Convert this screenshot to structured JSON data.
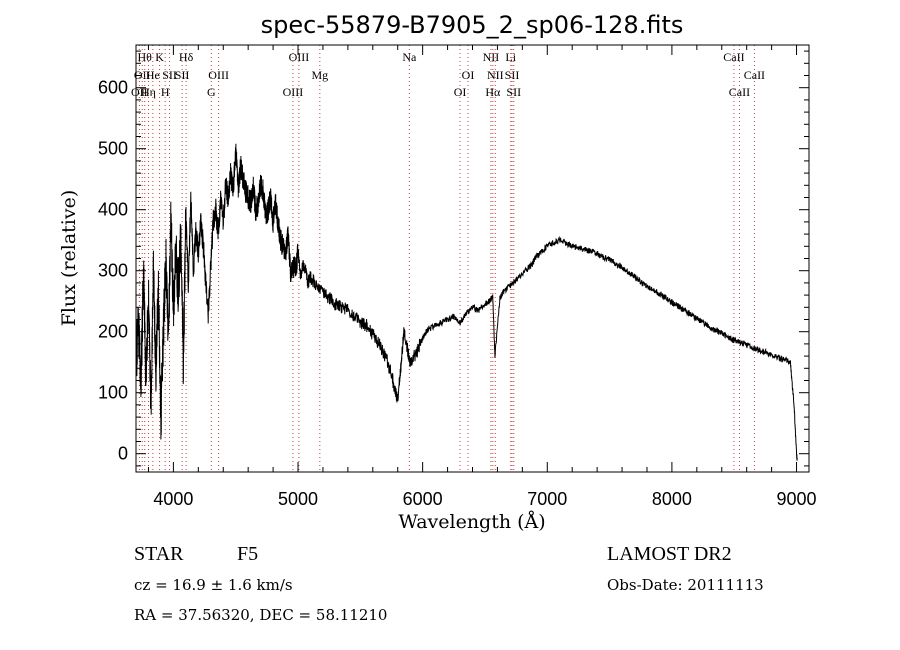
{
  "chart_data": {
    "type": "line",
    "title": "spec-55879-B7905_2_sp06-128.fits",
    "xlabel": "Wavelength (Å)",
    "ylabel": "Flux (relative)",
    "xlim": [
      3700,
      9100
    ],
    "ylim": [
      -30,
      670
    ],
    "x_ticks": [
      4000,
      5000,
      6000,
      7000,
      8000,
      9000
    ],
    "y_ticks": [
      0,
      100,
      200,
      300,
      400,
      500,
      600
    ],
    "grid": false,
    "series": [
      {
        "color": "#000000",
        "x": [
          3700,
          3720,
          3740,
          3760,
          3780,
          3800,
          3820,
          3840,
          3860,
          3880,
          3900,
          3920,
          3940,
          3960,
          3980,
          4000,
          4020,
          4040,
          4060,
          4080,
          4100,
          4120,
          4140,
          4160,
          4180,
          4200,
          4220,
          4240,
          4260,
          4280,
          4300,
          4320,
          4340,
          4360,
          4380,
          4400,
          4420,
          4440,
          4460,
          4480,
          4500,
          4520,
          4540,
          4560,
          4580,
          4600,
          4620,
          4640,
          4660,
          4680,
          4700,
          4720,
          4740,
          4760,
          4780,
          4800,
          4820,
          4840,
          4860,
          4880,
          4900,
          4920,
          4940,
          4960,
          4980,
          5000,
          5020,
          5040,
          5060,
          5080,
          5100,
          5150,
          5200,
          5250,
          5300,
          5350,
          5400,
          5450,
          5500,
          5550,
          5600,
          5650,
          5700,
          5750,
          5780,
          5800,
          5820,
          5850,
          5880,
          5900,
          5950,
          6000,
          6050,
          6100,
          6150,
          6200,
          6250,
          6300,
          6350,
          6400,
          6450,
          6500,
          6540,
          6562,
          6580,
          6620,
          6650,
          6700,
          6750,
          6800,
          6850,
          6880,
          6900,
          6950,
          7000,
          7050,
          7100,
          7150,
          7200,
          7250,
          7300,
          7350,
          7400,
          7450,
          7500,
          7550,
          7600,
          7650,
          7700,
          7750,
          7800,
          7850,
          7900,
          7950,
          8000,
          8050,
          8100,
          8150,
          8200,
          8250,
          8300,
          8350,
          8400,
          8450,
          8500,
          8550,
          8600,
          8650,
          8700,
          8750,
          8800,
          8850,
          8900,
          8950,
          8980,
          9000,
          9005
        ],
        "y": [
          150,
          210,
          110,
          300,
          120,
          260,
          80,
          310,
          140,
          270,
          60,
          200,
          320,
          180,
          380,
          240,
          330,
          270,
          350,
          150,
          390,
          280,
          420,
          300,
          360,
          330,
          380,
          340,
          280,
          230,
          310,
          380,
          400,
          360,
          420,
          380,
          440,
          420,
          460,
          430,
          500,
          430,
          470,
          450,
          430,
          420,
          410,
          440,
          400,
          410,
          440,
          430,
          390,
          400,
          420,
          380,
          410,
          380,
          350,
          340,
          330,
          360,
          300,
          310,
          300,
          330,
          290,
          310,
          300,
          280,
          290,
          275,
          265,
          255,
          245,
          240,
          235,
          225,
          215,
          210,
          195,
          180,
          160,
          130,
          100,
          90,
          130,
          200,
          170,
          150,
          165,
          190,
          205,
          210,
          215,
          220,
          225,
          215,
          230,
          240,
          235,
          245,
          250,
          260,
          160,
          255,
          265,
          275,
          285,
          295,
          305,
          310,
          320,
          330,
          340,
          345,
          350,
          345,
          340,
          338,
          335,
          332,
          328,
          322,
          318,
          312,
          305,
          298,
          290,
          282,
          275,
          268,
          262,
          255,
          248,
          242,
          235,
          228,
          222,
          215,
          208,
          202,
          198,
          192,
          186,
          182,
          178,
          174,
          170,
          166,
          162,
          158,
          154,
          150,
          80,
          0,
          -10
        ]
      }
    ],
    "lines": [
      {
        "wavelength": 3727,
        "label": "OII",
        "row": 2
      },
      {
        "wavelength": 3750,
        "label": "OII",
        "row": 1
      },
      {
        "wavelength": 3770,
        "label": "Hθ",
        "row": 0
      },
      {
        "wavelength": 3800,
        "label": "Hη",
        "row": 2
      },
      {
        "wavelength": 3835,
        "label": "He",
        "row": 1
      },
      {
        "wavelength": 3889,
        "label": "K",
        "row": 0
      },
      {
        "wavelength": 3934,
        "label": "H",
        "row": 2
      },
      {
        "wavelength": 3969,
        "label": "SII",
        "row": 1
      },
      {
        "wavelength": 4070,
        "label": "SII",
        "row": 1
      },
      {
        "wavelength": 4102,
        "label": "Hδ",
        "row": 0
      },
      {
        "wavelength": 4304,
        "label": "G",
        "row": 2
      },
      {
        "wavelength": 4363,
        "label": "OIII",
        "row": 1
      },
      {
        "wavelength": 4959,
        "label": "OIII",
        "row": 2
      },
      {
        "wavelength": 5007,
        "label": "OIII",
        "row": 0
      },
      {
        "wavelength": 5175,
        "label": "Mg",
        "row": 1
      },
      {
        "wavelength": 5893,
        "label": "Na",
        "row": 0
      },
      {
        "wavelength": 6300,
        "label": "OI",
        "row": 2
      },
      {
        "wavelength": 6364,
        "label": "OI",
        "row": 1
      },
      {
        "wavelength": 6548,
        "label": "NII",
        "row": 0
      },
      {
        "wavelength": 6563,
        "label": "Hα",
        "row": 2
      },
      {
        "wavelength": 6583,
        "label": "NII",
        "row": 1
      },
      {
        "wavelength": 6707,
        "label": "Li",
        "row": 0
      },
      {
        "wavelength": 6717,
        "label": "SII",
        "row": 1
      },
      {
        "wavelength": 6731,
        "label": "SII",
        "row": 2
      },
      {
        "wavelength": 8498,
        "label": "CaII",
        "row": 0
      },
      {
        "wavelength": 8542,
        "label": "CaII",
        "row": 2
      },
      {
        "wavelength": 8662,
        "label": "CaII",
        "row": 1
      }
    ]
  },
  "footer": {
    "object_class": "STAR",
    "subclass": "F5",
    "cz": "cz = 16.9 ± 1.6 km/s",
    "coords": "RA =  37.56320, DEC =  58.11210",
    "survey": "LAMOST DR2",
    "obs_date": "Obs-Date: 20111113"
  }
}
